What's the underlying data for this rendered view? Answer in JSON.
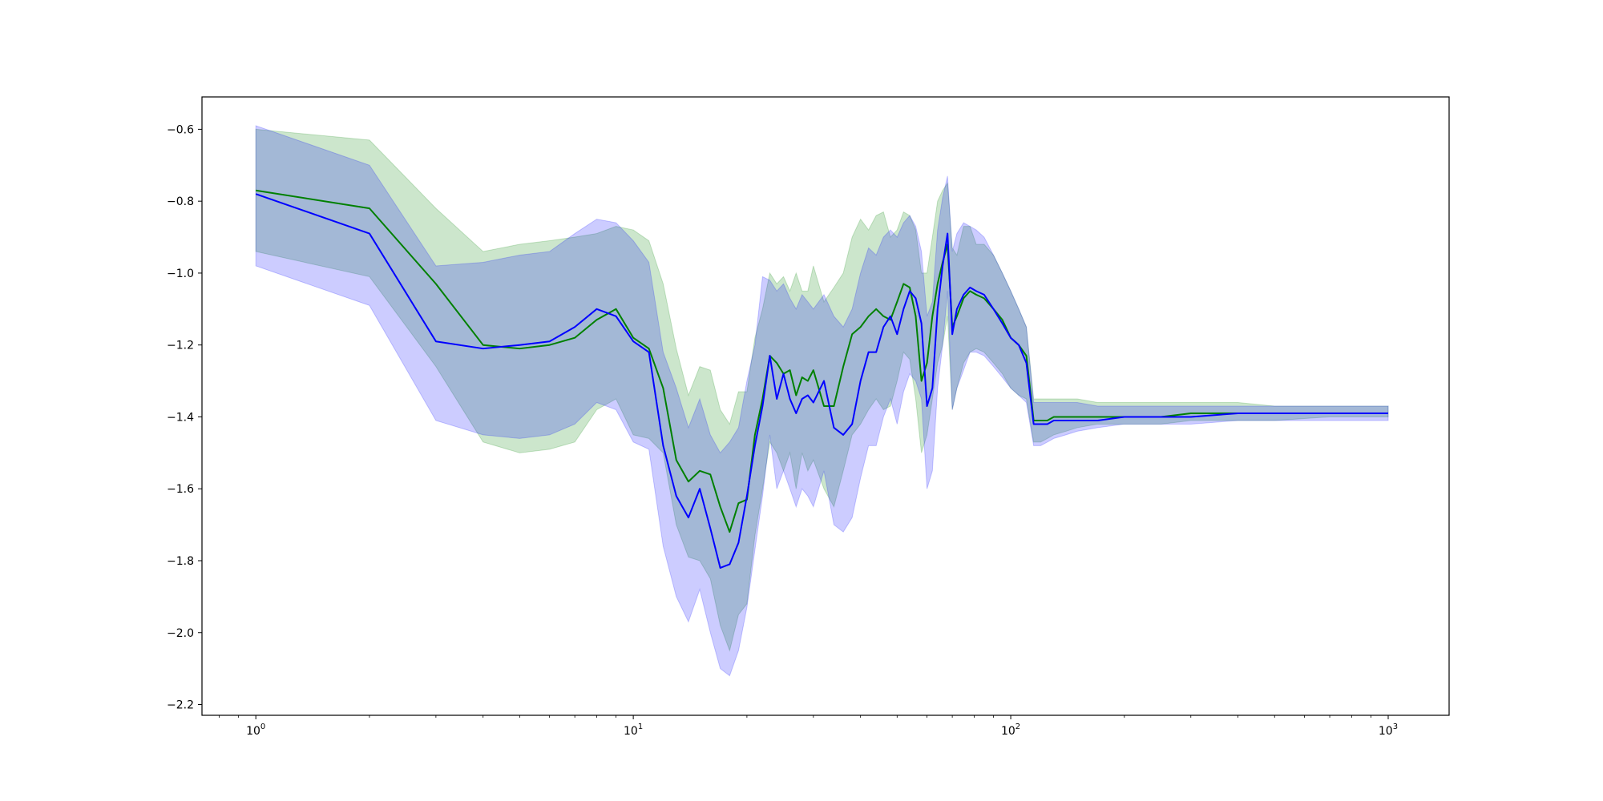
{
  "chart_data": {
    "type": "area",
    "xscale": "log",
    "xlim": [
      0.72,
      1450
    ],
    "ylim": [
      -2.23,
      -0.51
    ],
    "grid": false,
    "legend": "none",
    "title": "",
    "xlabel": "",
    "ylabel": "",
    "x_ticks": [
      {
        "value": 1,
        "base": "10",
        "exp": "0"
      },
      {
        "value": 10,
        "base": "10",
        "exp": "1"
      },
      {
        "value": 100,
        "base": "10",
        "exp": "2"
      },
      {
        "value": 1000,
        "base": "10",
        "exp": "3"
      }
    ],
    "y_ticks": [
      {
        "value": -0.6,
        "label": "−0.6"
      },
      {
        "value": -0.8,
        "label": "−0.8"
      },
      {
        "value": -1.0,
        "label": "−1.0"
      },
      {
        "value": -1.2,
        "label": "−1.2"
      },
      {
        "value": -1.4,
        "label": "−1.4"
      },
      {
        "value": -1.6,
        "label": "−1.6"
      },
      {
        "value": -1.8,
        "label": "−1.8"
      },
      {
        "value": -2.0,
        "label": "−2.0"
      },
      {
        "value": -2.2,
        "label": "−2.2"
      }
    ],
    "series": [
      {
        "color": "#008000",
        "band_color": "#008000",
        "band_opacity": 0.2,
        "x": [
          1,
          2,
          3,
          4,
          5,
          6,
          7,
          8,
          9,
          10,
          11,
          12,
          13,
          14,
          15,
          16,
          17,
          18,
          19,
          20,
          21,
          22,
          23,
          24,
          25,
          26,
          27,
          28,
          29,
          30,
          32,
          34,
          36,
          38,
          40,
          42,
          44,
          46,
          48,
          50,
          52,
          54,
          56,
          58,
          60,
          62,
          64,
          66,
          68,
          70,
          72,
          75,
          78,
          81,
          85,
          90,
          95,
          100,
          105,
          110,
          115,
          118,
          120,
          125,
          130,
          140,
          150,
          170,
          200,
          250,
          300,
          400,
          500,
          700,
          1000
        ],
        "mean": [
          -0.77,
          -0.82,
          -1.03,
          -1.2,
          -1.21,
          -1.2,
          -1.18,
          -1.13,
          -1.1,
          -1.18,
          -1.21,
          -1.32,
          -1.52,
          -1.58,
          -1.55,
          -1.56,
          -1.65,
          -1.72,
          -1.64,
          -1.63,
          -1.45,
          -1.35,
          -1.23,
          -1.25,
          -1.28,
          -1.27,
          -1.34,
          -1.29,
          -1.3,
          -1.27,
          -1.37,
          -1.37,
          -1.26,
          -1.17,
          -1.15,
          -1.12,
          -1.1,
          -1.12,
          -1.13,
          -1.08,
          -1.03,
          -1.04,
          -1.12,
          -1.3,
          -1.25,
          -1.12,
          -1.03,
          -0.97,
          -0.92,
          -1.15,
          -1.12,
          -1.07,
          -1.05,
          -1.06,
          -1.07,
          -1.1,
          -1.13,
          -1.18,
          -1.2,
          -1.23,
          -1.41,
          -1.41,
          -1.41,
          -1.41,
          -1.4,
          -1.4,
          -1.4,
          -1.4,
          -1.4,
          -1.4,
          -1.39,
          -1.39,
          -1.39,
          -1.39,
          -1.39
        ],
        "upper": [
          -0.6,
          -0.63,
          -0.82,
          -0.94,
          -0.92,
          -0.91,
          -0.9,
          -0.89,
          -0.87,
          -0.88,
          -0.91,
          -1.03,
          -1.21,
          -1.34,
          -1.26,
          -1.27,
          -1.38,
          -1.42,
          -1.33,
          -1.33,
          -1.18,
          -1.1,
          -1.0,
          -1.03,
          -1.01,
          -1.05,
          -1.0,
          -1.05,
          -1.05,
          -0.98,
          -1.08,
          -1.04,
          -1.0,
          -0.9,
          -0.85,
          -0.88,
          -0.84,
          -0.83,
          -0.9,
          -0.88,
          -0.83,
          -0.84,
          -0.88,
          -1.0,
          -1.0,
          -0.9,
          -0.8,
          -0.77,
          -0.75,
          -0.93,
          -0.95,
          -0.87,
          -0.87,
          -0.92,
          -0.92,
          -0.95,
          -1.0,
          -1.05,
          -1.1,
          -1.15,
          -1.35,
          -1.35,
          -1.35,
          -1.35,
          -1.35,
          -1.35,
          -1.35,
          -1.36,
          -1.36,
          -1.36,
          -1.36,
          -1.36,
          -1.37,
          -1.37,
          -1.37
        ],
        "lower": [
          -0.94,
          -1.01,
          -1.26,
          -1.47,
          -1.5,
          -1.49,
          -1.47,
          -1.38,
          -1.35,
          -1.45,
          -1.46,
          -1.5,
          -1.7,
          -1.79,
          -1.8,
          -1.85,
          -1.98,
          -2.05,
          -1.95,
          -1.92,
          -1.73,
          -1.6,
          -1.47,
          -1.5,
          -1.55,
          -1.5,
          -1.6,
          -1.5,
          -1.55,
          -1.52,
          -1.6,
          -1.65,
          -1.55,
          -1.45,
          -1.42,
          -1.38,
          -1.35,
          -1.38,
          -1.37,
          -1.3,
          -1.22,
          -1.24,
          -1.35,
          -1.5,
          -1.45,
          -1.35,
          -1.25,
          -1.2,
          -1.12,
          -1.38,
          -1.32,
          -1.25,
          -1.22,
          -1.21,
          -1.22,
          -1.25,
          -1.28,
          -1.32,
          -1.34,
          -1.35,
          -1.47,
          -1.47,
          -1.47,
          -1.46,
          -1.45,
          -1.44,
          -1.43,
          -1.42,
          -1.42,
          -1.42,
          -1.41,
          -1.41,
          -1.41,
          -1.4,
          -1.4
        ]
      },
      {
        "color": "#0000ff",
        "band_color": "#0000ff",
        "band_opacity": 0.2,
        "x": [
          1,
          2,
          3,
          4,
          5,
          6,
          7,
          8,
          9,
          10,
          11,
          12,
          13,
          14,
          15,
          16,
          17,
          18,
          19,
          20,
          21,
          22,
          23,
          24,
          25,
          26,
          27,
          28,
          29,
          30,
          32,
          34,
          36,
          38,
          40,
          42,
          44,
          46,
          48,
          50,
          52,
          54,
          56,
          58,
          60,
          62,
          64,
          66,
          68,
          70,
          72,
          75,
          78,
          81,
          85,
          90,
          95,
          100,
          105,
          110,
          115,
          118,
          120,
          125,
          130,
          140,
          150,
          170,
          200,
          250,
          300,
          400,
          500,
          700,
          1000
        ],
        "mean": [
          -0.78,
          -0.89,
          -1.19,
          -1.21,
          -1.2,
          -1.19,
          -1.15,
          -1.1,
          -1.12,
          -1.19,
          -1.22,
          -1.48,
          -1.62,
          -1.68,
          -1.6,
          -1.71,
          -1.82,
          -1.81,
          -1.75,
          -1.62,
          -1.48,
          -1.37,
          -1.23,
          -1.35,
          -1.28,
          -1.35,
          -1.39,
          -1.35,
          -1.34,
          -1.36,
          -1.3,
          -1.43,
          -1.45,
          -1.42,
          -1.3,
          -1.22,
          -1.22,
          -1.15,
          -1.12,
          -1.17,
          -1.1,
          -1.05,
          -1.07,
          -1.14,
          -1.37,
          -1.32,
          -1.1,
          -0.98,
          -0.89,
          -1.17,
          -1.1,
          -1.06,
          -1.04,
          -1.05,
          -1.06,
          -1.1,
          -1.14,
          -1.18,
          -1.2,
          -1.25,
          -1.42,
          -1.42,
          -1.42,
          -1.42,
          -1.41,
          -1.41,
          -1.41,
          -1.41,
          -1.4,
          -1.4,
          -1.4,
          -1.39,
          -1.39,
          -1.39,
          -1.39
        ],
        "upper": [
          -0.59,
          -0.7,
          -0.98,
          -0.97,
          -0.95,
          -0.94,
          -0.89,
          -0.85,
          -0.86,
          -0.91,
          -0.97,
          -1.22,
          -1.32,
          -1.43,
          -1.35,
          -1.45,
          -1.5,
          -1.47,
          -1.43,
          -1.3,
          -1.2,
          -1.01,
          -1.02,
          -1.05,
          -1.03,
          -1.07,
          -1.1,
          -1.06,
          -1.08,
          -1.1,
          -1.06,
          -1.12,
          -1.15,
          -1.1,
          -1.0,
          -0.93,
          -0.95,
          -0.9,
          -0.88,
          -0.9,
          -0.86,
          -0.84,
          -0.87,
          -0.94,
          -1.12,
          -1.08,
          -0.88,
          -0.79,
          -0.73,
          -0.94,
          -0.89,
          -0.86,
          -0.87,
          -0.88,
          -0.9,
          -0.95,
          -1.0,
          -1.05,
          -1.1,
          -1.15,
          -1.36,
          -1.36,
          -1.36,
          -1.36,
          -1.36,
          -1.36,
          -1.36,
          -1.37,
          -1.37,
          -1.37,
          -1.37,
          -1.37,
          -1.37,
          -1.37,
          -1.37
        ],
        "lower": [
          -0.98,
          -1.09,
          -1.41,
          -1.45,
          -1.46,
          -1.45,
          -1.42,
          -1.36,
          -1.38,
          -1.47,
          -1.49,
          -1.76,
          -1.9,
          -1.97,
          -1.88,
          -2.0,
          -2.1,
          -2.12,
          -2.05,
          -1.93,
          -1.77,
          -1.62,
          -1.45,
          -1.6,
          -1.55,
          -1.6,
          -1.65,
          -1.6,
          -1.62,
          -1.65,
          -1.55,
          -1.7,
          -1.72,
          -1.68,
          -1.57,
          -1.48,
          -1.48,
          -1.4,
          -1.35,
          -1.42,
          -1.33,
          -1.28,
          -1.3,
          -1.35,
          -1.6,
          -1.55,
          -1.32,
          -1.2,
          -1.05,
          -1.38,
          -1.32,
          -1.27,
          -1.22,
          -1.22,
          -1.23,
          -1.26,
          -1.29,
          -1.32,
          -1.34,
          -1.36,
          -1.48,
          -1.48,
          -1.48,
          -1.47,
          -1.46,
          -1.45,
          -1.44,
          -1.43,
          -1.42,
          -1.42,
          -1.42,
          -1.41,
          -1.41,
          -1.41,
          -1.41
        ]
      }
    ]
  }
}
